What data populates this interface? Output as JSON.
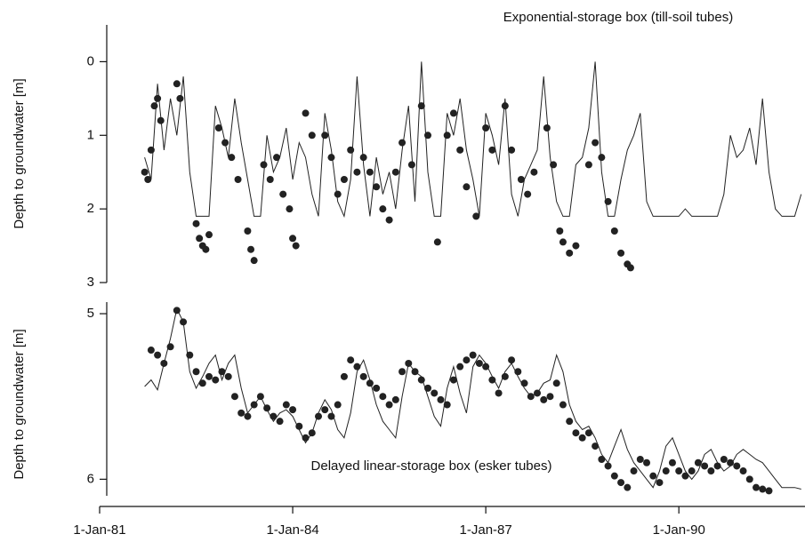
{
  "chart_data": [
    {
      "type": "line",
      "title": "Exponential-storage box (till-soil tubes)",
      "y_label": "Depth to groundwater [m]",
      "xlim": [
        1981,
        1991.96
      ],
      "ylim": [
        3,
        -0.5
      ],
      "yticks": [
        0,
        1,
        2,
        3
      ],
      "series": [
        {
          "type": "line",
          "color": "#222222",
          "x": [
            1981.7,
            1981.8,
            1981.9,
            1982.0,
            1982.1,
            1982.2,
            1982.3,
            1982.4,
            1982.5,
            1982.6,
            1982.7,
            1982.8,
            1982.9,
            1983.0,
            1983.1,
            1983.2,
            1983.3,
            1983.4,
            1983.5,
            1983.6,
            1983.7,
            1983.8,
            1983.9,
            1984.0,
            1984.1,
            1984.2,
            1984.3,
            1984.4,
            1984.5,
            1984.6,
            1984.7,
            1984.8,
            1984.9,
            1985.0,
            1985.1,
            1985.2,
            1985.3,
            1985.4,
            1985.5,
            1985.6,
            1985.7,
            1985.8,
            1985.9,
            1986.0,
            1986.1,
            1986.2,
            1986.3,
            1986.4,
            1986.5,
            1986.6,
            1986.7,
            1986.8,
            1986.9,
            1987.0,
            1987.1,
            1987.2,
            1987.3,
            1987.4,
            1987.5,
            1987.6,
            1987.7,
            1987.8,
            1987.9,
            1988.0,
            1988.1,
            1988.2,
            1988.3,
            1988.4,
            1988.5,
            1988.6,
            1988.7,
            1988.8,
            1988.9,
            1989.0,
            1989.1,
            1989.2,
            1989.3,
            1989.4,
            1989.5,
            1989.6,
            1989.7,
            1989.8,
            1989.9,
            1990.0,
            1990.1,
            1990.2,
            1990.3,
            1990.4,
            1990.5,
            1990.6,
            1990.7,
            1990.8,
            1990.9,
            1991.0,
            1991.1,
            1991.2,
            1991.3,
            1991.4,
            1991.5,
            1991.6,
            1991.7,
            1991.8,
            1991.9
          ],
          "values": [
            1.3,
            1.6,
            0.3,
            1.2,
            0.5,
            1.0,
            0.2,
            1.5,
            2.1,
            2.1,
            2.1,
            0.6,
            0.9,
            1.3,
            0.5,
            1.1,
            1.6,
            2.1,
            2.1,
            1.0,
            1.5,
            1.3,
            0.9,
            1.6,
            1.1,
            1.3,
            1.8,
            2.1,
            0.7,
            1.2,
            1.9,
            2.1,
            1.6,
            0.2,
            1.4,
            2.1,
            1.3,
            1.8,
            1.5,
            2.0,
            1.2,
            0.6,
            1.9,
            0.0,
            1.5,
            2.1,
            2.1,
            0.7,
            1.0,
            0.5,
            1.2,
            1.6,
            2.1,
            0.7,
            1.0,
            1.4,
            0.5,
            1.8,
            2.1,
            1.6,
            1.4,
            1.2,
            0.2,
            1.3,
            1.9,
            2.1,
            2.1,
            1.4,
            1.3,
            0.9,
            0.0,
            1.5,
            2.1,
            2.1,
            1.6,
            1.2,
            1.0,
            0.7,
            1.9,
            2.1,
            2.1,
            2.1,
            2.1,
            2.1,
            2.0,
            2.1,
            2.1,
            2.1,
            2.1,
            2.1,
            1.8,
            1.0,
            1.3,
            1.2,
            0.9,
            1.4,
            0.5,
            1.5,
            2.0,
            2.1,
            2.1,
            2.1,
            1.8
          ]
        },
        {
          "type": "scatter",
          "color": "#222222",
          "x": [
            1981.7,
            1981.75,
            1981.8,
            1981.85,
            1981.9,
            1981.95,
            1982.2,
            1982.25,
            1982.5,
            1982.55,
            1982.6,
            1982.65,
            1982.7,
            1982.85,
            1982.95,
            1983.05,
            1983.15,
            1983.3,
            1983.35,
            1983.4,
            1983.55,
            1983.65,
            1983.75,
            1983.85,
            1983.95,
            1984.0,
            1984.05,
            1984.2,
            1984.3,
            1984.5,
            1984.6,
            1984.7,
            1984.8,
            1984.9,
            1985.0,
            1985.1,
            1985.2,
            1985.3,
            1985.4,
            1985.5,
            1985.6,
            1985.7,
            1985.85,
            1986.0,
            1986.1,
            1986.25,
            1986.4,
            1986.5,
            1986.6,
            1986.7,
            1986.85,
            1987.0,
            1987.1,
            1987.3,
            1987.4,
            1987.55,
            1987.65,
            1987.75,
            1987.95,
            1988.05,
            1988.15,
            1988.2,
            1988.3,
            1988.4,
            1988.6,
            1988.7,
            1988.8,
            1988.9,
            1989.0,
            1989.1,
            1989.2,
            1989.25
          ],
          "values": [
            1.5,
            1.6,
            1.2,
            0.6,
            0.5,
            0.8,
            0.3,
            0.5,
            2.2,
            2.4,
            2.5,
            2.55,
            2.35,
            0.9,
            1.1,
            1.3,
            1.6,
            2.3,
            2.55,
            2.7,
            1.4,
            1.6,
            1.3,
            1.8,
            2.0,
            2.4,
            2.5,
            0.7,
            1.0,
            1.0,
            1.3,
            1.8,
            1.6,
            1.2,
            1.5,
            1.3,
            1.5,
            1.7,
            2.0,
            2.15,
            1.5,
            1.1,
            1.4,
            0.6,
            1.0,
            2.45,
            1.0,
            0.7,
            1.2,
            1.7,
            2.1,
            0.9,
            1.2,
            0.6,
            1.2,
            1.6,
            1.8,
            1.5,
            0.9,
            1.4,
            2.3,
            2.45,
            2.6,
            2.5,
            1.4,
            1.1,
            1.3,
            1.9,
            2.3,
            2.6,
            2.75,
            2.8
          ]
        }
      ]
    },
    {
      "type": "line",
      "title": "Delayed linear-storage box (esker tubes)",
      "y_label": "Depth to groundwater [m]",
      "xlim": [
        1981,
        1991.96
      ],
      "ylim": [
        6.1,
        4.93
      ],
      "yticks": [
        5,
        6
      ],
      "xticks": [
        {
          "value": 1981,
          "label": "1-Jan-81"
        },
        {
          "value": 1984,
          "label": "1-Jan-84"
        },
        {
          "value": 1987,
          "label": "1-Jan-87"
        },
        {
          "value": 1990,
          "label": "1-Jan-90"
        }
      ],
      "series": [
        {
          "type": "line",
          "color": "#222222",
          "x": [
            1981.7,
            1981.8,
            1981.9,
            1982.0,
            1982.1,
            1982.2,
            1982.3,
            1982.4,
            1982.5,
            1982.6,
            1982.7,
            1982.8,
            1982.9,
            1983.0,
            1983.1,
            1983.2,
            1983.3,
            1983.4,
            1983.5,
            1983.6,
            1983.7,
            1983.8,
            1983.9,
            1984.0,
            1984.1,
            1984.2,
            1984.3,
            1984.4,
            1984.5,
            1984.6,
            1984.7,
            1984.8,
            1984.9,
            1985.0,
            1985.1,
            1985.2,
            1985.3,
            1985.4,
            1985.5,
            1985.6,
            1985.7,
            1985.8,
            1985.9,
            1986.0,
            1986.1,
            1986.2,
            1986.3,
            1986.4,
            1986.5,
            1986.6,
            1986.7,
            1986.8,
            1986.9,
            1987.0,
            1987.1,
            1987.2,
            1987.3,
            1987.4,
            1987.5,
            1987.6,
            1987.7,
            1987.8,
            1987.9,
            1988.0,
            1988.1,
            1988.2,
            1988.3,
            1988.4,
            1988.5,
            1988.6,
            1988.7,
            1988.8,
            1988.9,
            1989.0,
            1989.1,
            1989.2,
            1989.3,
            1989.4,
            1989.5,
            1989.6,
            1989.7,
            1989.8,
            1989.9,
            1990.0,
            1990.1,
            1990.2,
            1990.3,
            1990.4,
            1990.5,
            1990.6,
            1990.7,
            1990.8,
            1990.9,
            1991.0,
            1991.1,
            1991.2,
            1991.3,
            1991.4,
            1991.5,
            1991.6,
            1991.7,
            1991.8,
            1991.9
          ],
          "values": [
            5.44,
            5.4,
            5.46,
            5.3,
            5.15,
            4.97,
            5.05,
            5.35,
            5.45,
            5.38,
            5.3,
            5.25,
            5.4,
            5.3,
            5.25,
            5.45,
            5.6,
            5.55,
            5.5,
            5.58,
            5.65,
            5.6,
            5.58,
            5.62,
            5.7,
            5.78,
            5.72,
            5.6,
            5.52,
            5.58,
            5.7,
            5.75,
            5.6,
            5.35,
            5.28,
            5.4,
            5.55,
            5.65,
            5.7,
            5.75,
            5.5,
            5.3,
            5.35,
            5.38,
            5.5,
            5.62,
            5.68,
            5.45,
            5.32,
            5.48,
            5.6,
            5.32,
            5.25,
            5.3,
            5.38,
            5.45,
            5.35,
            5.3,
            5.38,
            5.45,
            5.5,
            5.48,
            5.42,
            5.4,
            5.25,
            5.35,
            5.55,
            5.65,
            5.7,
            5.68,
            5.75,
            5.85,
            5.9,
            5.8,
            5.7,
            5.82,
            5.9,
            5.95,
            6.0,
            6.05,
            5.95,
            5.8,
            5.75,
            5.85,
            5.95,
            6.0,
            5.95,
            5.85,
            5.82,
            5.9,
            5.95,
            5.92,
            5.85,
            5.82,
            5.85,
            5.88,
            5.9,
            5.95,
            6.0,
            6.05,
            6.05,
            6.05,
            6.06
          ]
        },
        {
          "type": "scatter",
          "color": "#222222",
          "x": [
            1981.8,
            1981.9,
            1982.0,
            1982.1,
            1982.2,
            1982.3,
            1982.4,
            1982.5,
            1982.6,
            1982.7,
            1982.8,
            1982.9,
            1983.0,
            1983.1,
            1983.2,
            1983.3,
            1983.4,
            1983.5,
            1983.6,
            1983.7,
            1983.8,
            1983.9,
            1984.0,
            1984.1,
            1984.2,
            1984.3,
            1984.4,
            1984.5,
            1984.6,
            1984.7,
            1984.8,
            1984.9,
            1985.0,
            1985.1,
            1985.2,
            1985.3,
            1985.4,
            1985.5,
            1985.6,
            1985.7,
            1985.8,
            1985.9,
            1986.0,
            1986.1,
            1986.2,
            1986.3,
            1986.4,
            1986.5,
            1986.6,
            1986.7,
            1986.8,
            1986.9,
            1987.0,
            1987.1,
            1987.2,
            1987.3,
            1987.4,
            1987.5,
            1987.6,
            1987.7,
            1987.8,
            1987.9,
            1988.0,
            1988.1,
            1988.2,
            1988.3,
            1988.4,
            1988.5,
            1988.6,
            1988.7,
            1988.8,
            1988.9,
            1989.0,
            1989.1,
            1989.2,
            1989.3,
            1989.4,
            1989.5,
            1989.6,
            1989.7,
            1989.8,
            1989.9,
            1990.0,
            1990.1,
            1990.2,
            1990.3,
            1990.4,
            1990.5,
            1990.6,
            1990.7,
            1990.8,
            1990.9,
            1991.0,
            1991.1,
            1991.2,
            1991.3,
            1991.4
          ],
          "values": [
            5.22,
            5.25,
            5.3,
            5.2,
            4.98,
            5.05,
            5.25,
            5.35,
            5.42,
            5.38,
            5.4,
            5.35,
            5.38,
            5.5,
            5.6,
            5.62,
            5.55,
            5.5,
            5.57,
            5.62,
            5.65,
            5.55,
            5.58,
            5.68,
            5.75,
            5.72,
            5.62,
            5.58,
            5.62,
            5.55,
            5.38,
            5.28,
            5.32,
            5.38,
            5.42,
            5.45,
            5.5,
            5.55,
            5.52,
            5.35,
            5.3,
            5.35,
            5.4,
            5.45,
            5.48,
            5.52,
            5.55,
            5.4,
            5.32,
            5.28,
            5.25,
            5.3,
            5.32,
            5.4,
            5.48,
            5.38,
            5.28,
            5.35,
            5.42,
            5.5,
            5.48,
            5.52,
            5.5,
            5.42,
            5.55,
            5.65,
            5.72,
            5.75,
            5.72,
            5.8,
            5.88,
            5.92,
            5.98,
            6.02,
            6.05,
            5.95,
            5.88,
            5.9,
            5.98,
            6.02,
            5.95,
            5.9,
            5.95,
            5.98,
            5.95,
            5.9,
            5.92,
            5.95,
            5.92,
            5.88,
            5.9,
            5.92,
            5.95,
            6.0,
            6.05,
            6.06,
            6.07
          ]
        }
      ]
    }
  ]
}
